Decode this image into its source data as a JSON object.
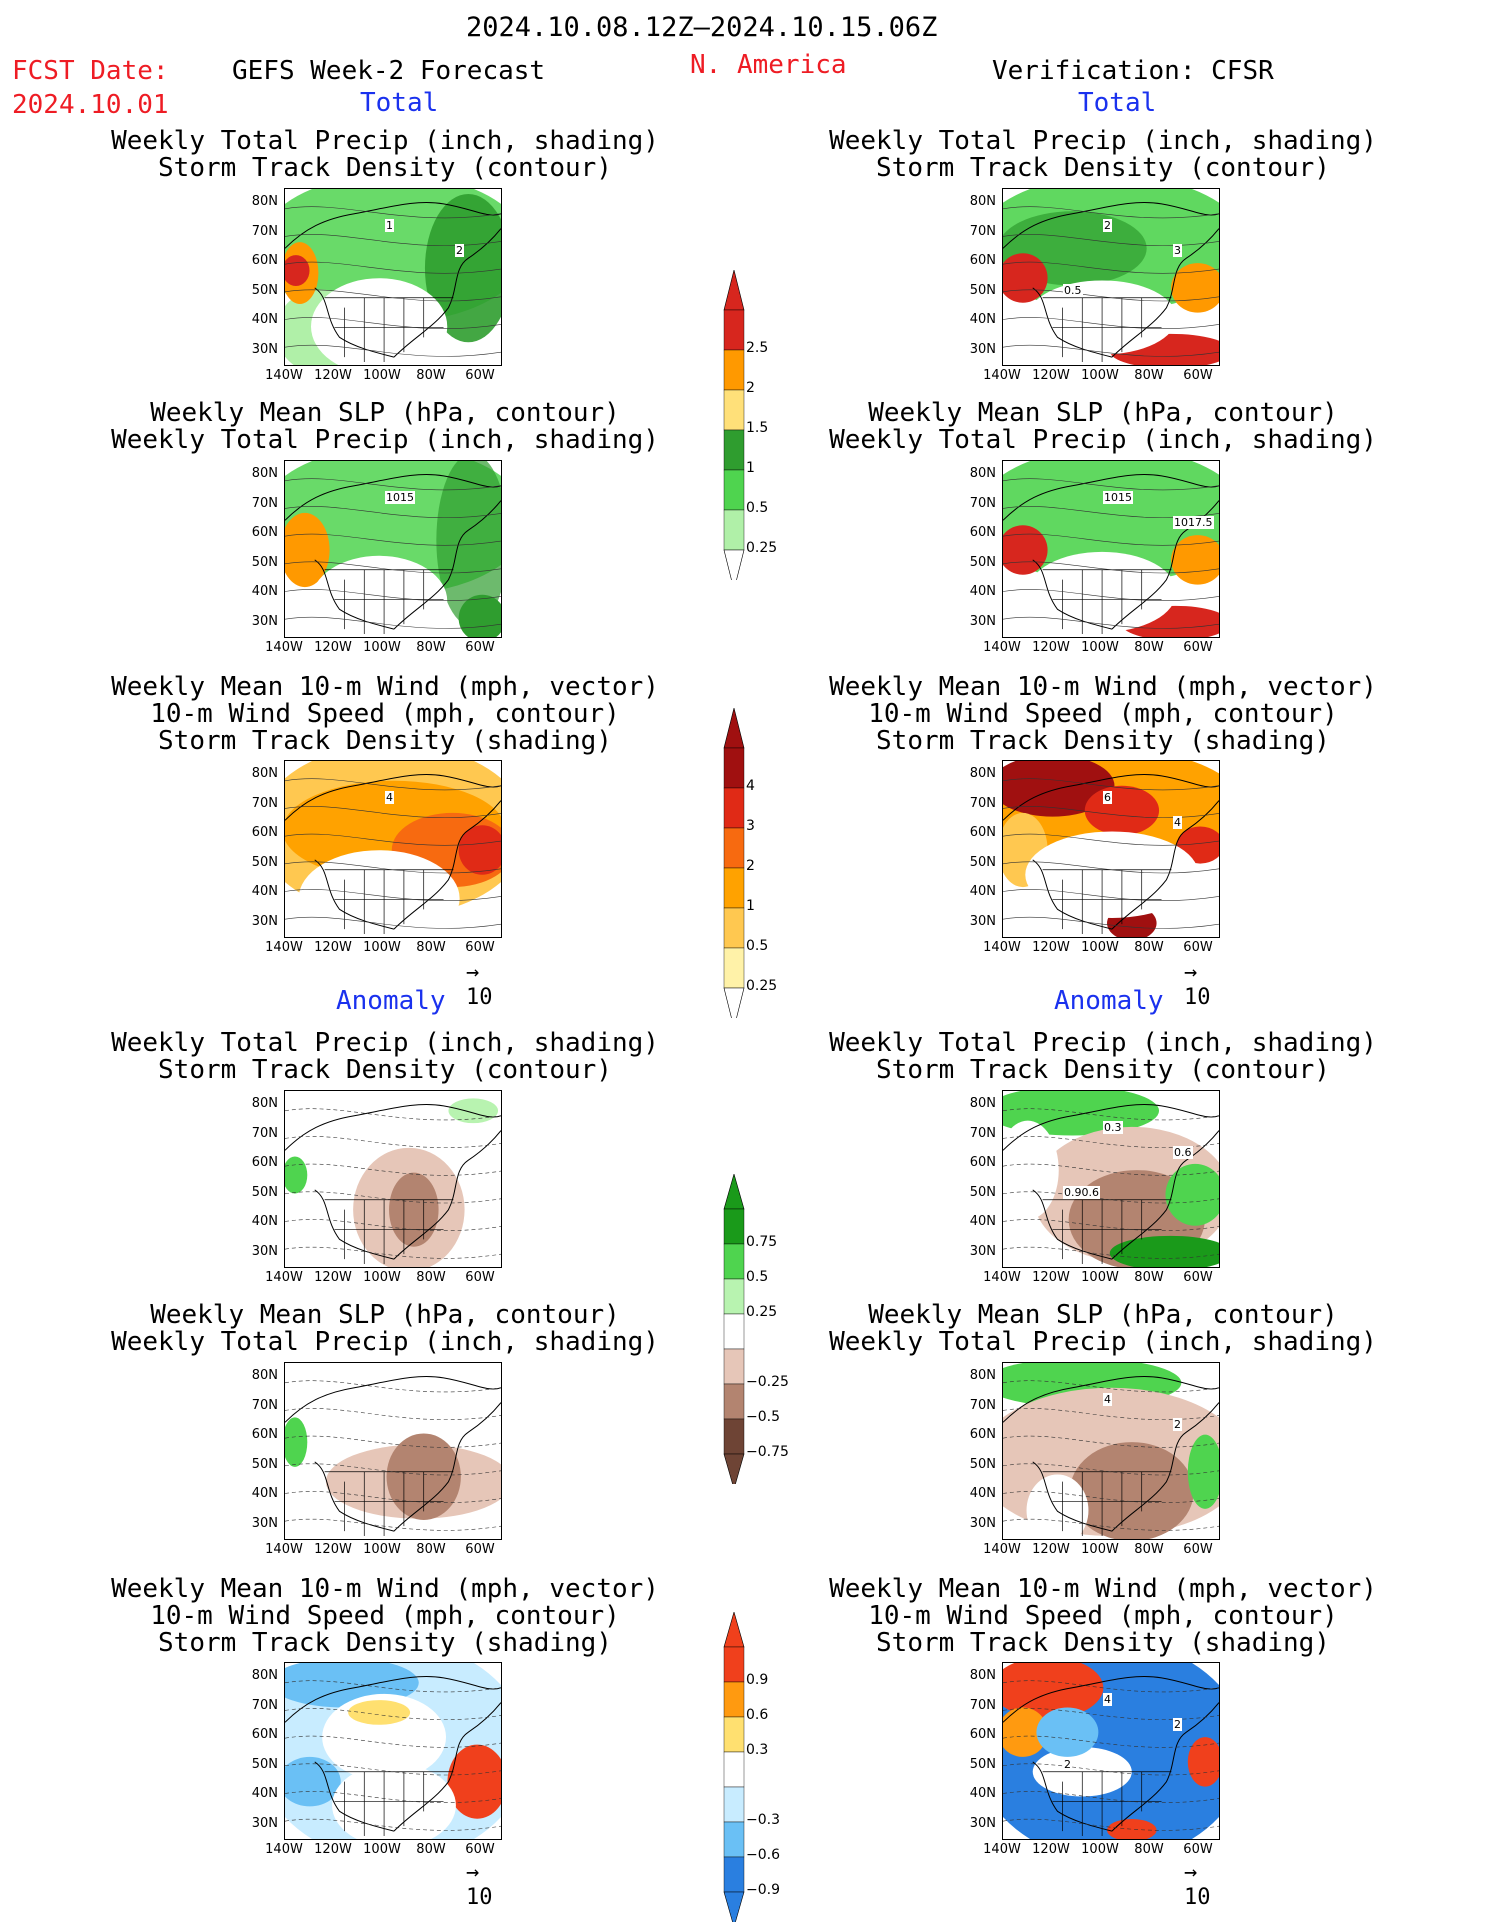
{
  "header": {
    "period": "2024.10.08.12Z–2024.10.15.06Z",
    "fcst_label": "FCST Date:",
    "fcst_date": "2024.10.01",
    "left_title": "GEFS Week-2 Forecast",
    "region": "N. America",
    "right_title": "Verification: CFSR"
  },
  "sections": {
    "total": "Total",
    "anomaly": "Anomaly"
  },
  "panel_titles": {
    "precip_storm": "Weekly Total Precip (inch, shading)\nStorm Track Density (contour)",
    "slp_precip": "Weekly Mean SLP (hPa, contour)\nWeekly Total Precip (inch, shading)",
    "wind_storm": "Weekly Mean 10-m Wind (mph, vector)\n10-m Wind Speed (mph, contour)\nStorm Track Density (shading)"
  },
  "axes": {
    "lat": [
      "80N",
      "70N",
      "60N",
      "50N",
      "40N",
      "30N"
    ],
    "lon": [
      "140W",
      "120W",
      "100W",
      "80W",
      "60W"
    ]
  },
  "contour_labels": {
    "f_precip_total": [
      "1",
      "2"
    ],
    "v_precip_total": [
      "2",
      "3",
      "0.5"
    ],
    "f_slp_total": [
      "1015"
    ],
    "v_slp_total": [
      "1015",
      "1017.5"
    ],
    "f_wind_total": [
      "4"
    ],
    "v_wind_total": [
      "6",
      "4"
    ],
    "v_precip_anom": [
      "0.3",
      "0.6",
      "0.90.6"
    ],
    "v_slp_anom": [
      "4",
      "2"
    ],
    "v_wind_anom": [
      "4",
      "2",
      "2"
    ]
  },
  "vector_ref": "10",
  "colorbars": {
    "precip_total": {
      "labels": [
        "2.5",
        "2",
        "1.5",
        "1",
        "0.5",
        "0.25"
      ],
      "colors": [
        "#d7261e",
        "#ff9900",
        "#ffe079",
        "#2f9d2f",
        "#4fd44f",
        "#b0f0a8"
      ]
    },
    "storm_total": {
      "labels": [
        "4",
        "3",
        "2",
        "1",
        "0.5",
        "0.25"
      ],
      "colors": [
        "#a01010",
        "#e02a16",
        "#f76a10",
        "#ffa200",
        "#ffc850",
        "#fff2a8"
      ]
    },
    "precip_anom": {
      "labels": [
        "0.75",
        "0.5",
        "0.25",
        "−0.25",
        "−0.5",
        "−0.75"
      ],
      "colors": [
        "#1a9a1a",
        "#4fd44f",
        "#b8f3b0",
        "#ffffff",
        "#e6c6b8",
        "#b38470",
        "#6e4435"
      ]
    },
    "storm_anom": {
      "labels": [
        "0.9",
        "0.6",
        "0.3",
        "−0.3",
        "−0.6",
        "−0.9"
      ],
      "colors": [
        "#f0401c",
        "#ff9a10",
        "#ffe070",
        "#ffffff",
        "#c8ecff",
        "#6ac0f5",
        "#2a7fe0"
      ]
    }
  }
}
